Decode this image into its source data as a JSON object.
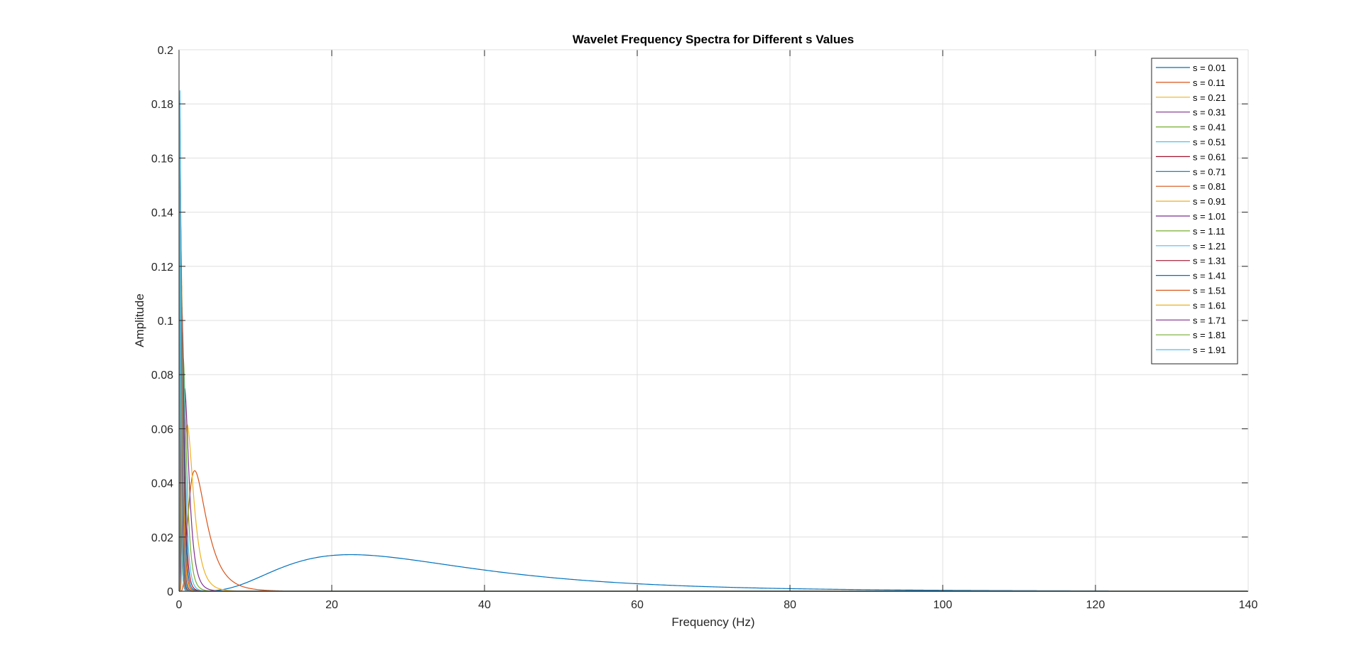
{
  "chart_data": {
    "type": "line",
    "title": "Wavelet Frequency Spectra for Different s Values",
    "xlabel": "Frequency (Hz)",
    "ylabel": "Amplitude",
    "xlim": [
      0,
      140
    ],
    "ylim": [
      0,
      0.2
    ],
    "xticks": [
      "0",
      "20",
      "40",
      "60",
      "80",
      "100",
      "120",
      "140"
    ],
    "yticks": [
      "0",
      "0.02",
      "0.04",
      "0.06",
      "0.08",
      "0.1",
      "0.12",
      "0.14",
      "0.16",
      "0.18",
      "0.2"
    ],
    "grid": true,
    "legend_position": "top-right",
    "palette": [
      "#0072BD",
      "#D95319",
      "#EDB120",
      "#7E2F8E",
      "#77AC30",
      "#4DBEEE",
      "#A2142F"
    ],
    "series": [
      {
        "name": "s = 0.01",
        "peak_x": 22.5,
        "peak_y": 0.0135
      },
      {
        "name": "s = 0.11",
        "peak_x": 2.05,
        "peak_y": 0.0445
      },
      {
        "name": "s = 0.21",
        "peak_x": 1.07,
        "peak_y": 0.0615
      },
      {
        "name": "s = 0.31",
        "peak_x": 0.73,
        "peak_y": 0.075
      },
      {
        "name": "s = 0.41",
        "peak_x": 0.55,
        "peak_y": 0.086
      },
      {
        "name": "s = 0.51",
        "peak_x": 0.44,
        "peak_y": 0.096
      },
      {
        "name": "s = 0.61",
        "peak_x": 0.37,
        "peak_y": 0.105
      },
      {
        "name": "s = 0.71",
        "peak_x": 0.32,
        "peak_y": 0.113
      },
      {
        "name": "s = 0.81",
        "peak_x": 0.28,
        "peak_y": 0.121
      },
      {
        "name": "s = 0.91",
        "peak_x": 0.25,
        "peak_y": 0.128
      },
      {
        "name": "s = 1.01",
        "peak_x": 0.22,
        "peak_y": 0.135
      },
      {
        "name": "s = 1.11",
        "peak_x": 0.2,
        "peak_y": 0.141
      },
      {
        "name": "s = 1.21",
        "peak_x": 0.19,
        "peak_y": 0.147
      },
      {
        "name": "s = 1.31",
        "peak_x": 0.17,
        "peak_y": 0.153
      },
      {
        "name": "s = 1.41",
        "peak_x": 0.16,
        "peak_y": 0.159
      },
      {
        "name": "s = 1.51",
        "peak_x": 0.15,
        "peak_y": 0.164
      },
      {
        "name": "s = 1.61",
        "peak_x": 0.14,
        "peak_y": 0.17
      },
      {
        "name": "s = 1.71",
        "peak_x": 0.13,
        "peak_y": 0.175
      },
      {
        "name": "s = 1.81",
        "peak_x": 0.12,
        "peak_y": 0.18
      },
      {
        "name": "s = 1.91",
        "peak_x": 0.12,
        "peak_y": 0.185
      }
    ]
  }
}
